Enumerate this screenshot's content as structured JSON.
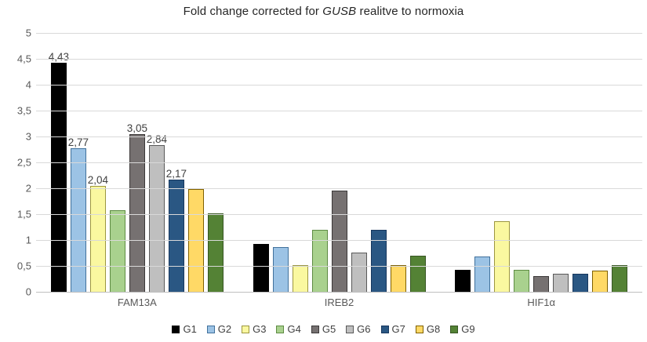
{
  "title": {
    "prefix": "Fold change corrected for ",
    "italic": "GUSB",
    "suffix": " realitve to normoxia"
  },
  "chart_data": {
    "type": "bar",
    "categories": [
      "FAM13A",
      "IREB2",
      "HIF1α"
    ],
    "series": [
      {
        "name": "G1",
        "color": "#000000",
        "border": "#000000",
        "values": [
          4.43,
          0.93,
          0.43
        ],
        "labels": [
          "4,43",
          "",
          ""
        ]
      },
      {
        "name": "G2",
        "color": "#9CC3E5",
        "border": "#41719C",
        "values": [
          2.77,
          0.86,
          0.68
        ],
        "labels": [
          "2,77",
          "",
          ""
        ]
      },
      {
        "name": "G3",
        "color": "#FAF8A0",
        "border": "#9C9640",
        "values": [
          2.04,
          0.52,
          1.37
        ],
        "labels": [
          "2,04",
          "",
          ""
        ]
      },
      {
        "name": "G4",
        "color": "#A9D18E",
        "border": "#5E8B43",
        "values": [
          1.58,
          1.19,
          0.42
        ],
        "labels": [
          "",
          "",
          ""
        ]
      },
      {
        "name": "G5",
        "color": "#767171",
        "border": "#3B3838",
        "values": [
          3.05,
          1.95,
          0.31
        ],
        "labels": [
          "3,05",
          "",
          ""
        ]
      },
      {
        "name": "G6",
        "color": "#BFBFBF",
        "border": "#595959",
        "values": [
          2.84,
          0.76,
          0.35
        ],
        "labels": [
          "2,84",
          "",
          ""
        ]
      },
      {
        "name": "G7",
        "color": "#2A5783",
        "border": "#17375E",
        "values": [
          2.17,
          1.19,
          0.35
        ],
        "labels": [
          "2,17",
          "",
          ""
        ]
      },
      {
        "name": "G8",
        "color": "#FFD966",
        "border": "#7F6000",
        "values": [
          1.98,
          0.52,
          0.41
        ],
        "labels": [
          "",
          "",
          ""
        ]
      },
      {
        "name": "G9",
        "color": "#548235",
        "border": "#375623",
        "values": [
          1.51,
          0.7,
          0.52
        ],
        "labels": [
          "",
          "",
          ""
        ]
      }
    ],
    "title": "Fold change corrected for GUSB realitve to normoxia",
    "xlabel": "",
    "ylabel": "",
    "ylim": [
      0,
      5
    ],
    "yticks": [
      {
        "value": 5,
        "label": "5"
      },
      {
        "value": 4.5,
        "label": "4,5"
      },
      {
        "value": 4,
        "label": "4"
      },
      {
        "value": 3.5,
        "label": "3,5"
      },
      {
        "value": 3,
        "label": "3"
      },
      {
        "value": 2.5,
        "label": "2,5"
      },
      {
        "value": 2,
        "label": "2"
      },
      {
        "value": 1.5,
        "label": "1,5"
      },
      {
        "value": 1,
        "label": "1"
      },
      {
        "value": 0.5,
        "label": "0,5"
      },
      {
        "value": 0,
        "label": "0"
      }
    ],
    "grid": true,
    "legend_position": "bottom"
  },
  "colors": {
    "gridline": "#D9D9D9",
    "axis_line": "#BFBFBF",
    "axis_text": "#595959",
    "data_label_text": "#404040",
    "title_text": "#262626",
    "background": "#FFFFFF"
  }
}
